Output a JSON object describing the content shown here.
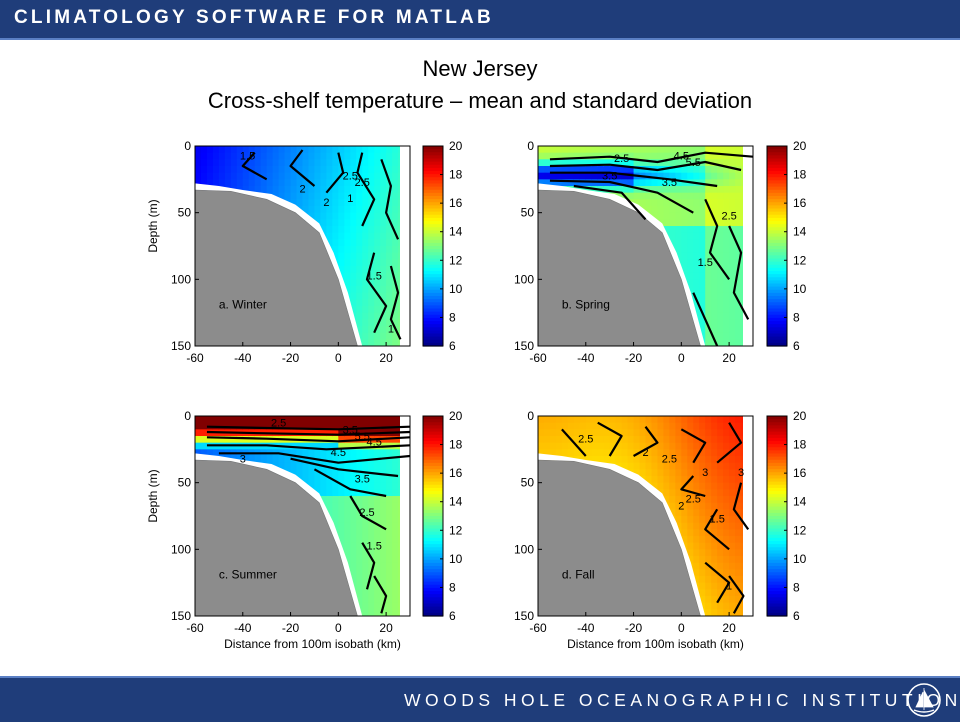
{
  "header": {
    "title": "CLIMATOLOGY SOFTWARE FOR MATLAB"
  },
  "footer": {
    "title": "WOODS HOLE OCEANOGRAPHIC INSTITUTION"
  },
  "icons": {
    "logo": "whoi-logo-icon"
  },
  "chart_title": "New Jersey",
  "chart_subtitle": "Cross-shelf temperature – mean and standard deviation",
  "chart_data": [
    {
      "type": "heatmap",
      "panel_label": "a. Winter",
      "xlabel": "",
      "ylabel": "Depth (m)",
      "xlim": [
        -60,
        30
      ],
      "ylim": [
        150,
        0
      ],
      "x_ticks": [
        "-60",
        "-40",
        "-20",
        "0",
        "20"
      ],
      "y_ticks": [
        "0",
        "50",
        "100",
        "150"
      ],
      "colorbar_ticks": [
        "20",
        "18",
        "16",
        "14",
        "12",
        "10",
        "8",
        "6"
      ],
      "colorbar_range": [
        6,
        20
      ],
      "contour_labels": [
        "1.5",
        "2.5",
        "2",
        "2.5",
        "1",
        "2",
        "1.5",
        "1"
      ],
      "approx_temperature_range": [
        7,
        13
      ]
    },
    {
      "type": "heatmap",
      "panel_label": "b. Spring",
      "xlabel": "",
      "ylabel": "",
      "xlim": [
        -60,
        30
      ],
      "ylim": [
        150,
        0
      ],
      "x_ticks": [
        "-60",
        "-40",
        "-20",
        "0",
        "20"
      ],
      "y_ticks": [
        "0",
        "50",
        "100",
        "150"
      ],
      "colorbar_ticks": [
        "20",
        "18",
        "16",
        "14",
        "12",
        "10",
        "8",
        "6"
      ],
      "colorbar_range": [
        6,
        20
      ],
      "contour_labels": [
        "2.5",
        "4.5",
        "3.5",
        "3.5",
        "5.5",
        "2.5",
        "1.5"
      ],
      "approx_temperature_range": [
        6,
        15
      ]
    },
    {
      "type": "heatmap",
      "panel_label": "c. Summer",
      "xlabel": "Distance from 100m isobath (km)",
      "ylabel": "Depth (m)",
      "xlim": [
        -60,
        30
      ],
      "ylim": [
        150,
        0
      ],
      "x_ticks": [
        "-60",
        "-40",
        "-20",
        "0",
        "20"
      ],
      "y_ticks": [
        "0",
        "50",
        "100",
        "150"
      ],
      "colorbar_ticks": [
        "20",
        "18",
        "16",
        "14",
        "12",
        "10",
        "8",
        "6"
      ],
      "colorbar_range": [
        6,
        20
      ],
      "contour_labels": [
        "2.5",
        "3.5",
        "5.5",
        "4.5",
        "3",
        "4.5",
        "3.5",
        "2.5",
        "1.5"
      ],
      "approx_temperature_range": [
        8,
        22
      ]
    },
    {
      "type": "heatmap",
      "panel_label": "d. Fall",
      "xlabel": "Distance from 100m isobath (km)",
      "ylabel": "",
      "xlim": [
        -60,
        30
      ],
      "ylim": [
        150,
        0
      ],
      "x_ticks": [
        "-60",
        "-40",
        "-20",
        "0",
        "20"
      ],
      "y_ticks": [
        "0",
        "50",
        "100",
        "150"
      ],
      "colorbar_ticks": [
        "20",
        "18",
        "16",
        "14",
        "12",
        "10",
        "8",
        "6"
      ],
      "colorbar_range": [
        6,
        20
      ],
      "contour_labels": [
        "2.5",
        "2",
        "2.5",
        "3",
        "3",
        "2",
        "2.5",
        "1.5",
        "1"
      ],
      "approx_temperature_range": [
        12,
        18
      ]
    }
  ]
}
